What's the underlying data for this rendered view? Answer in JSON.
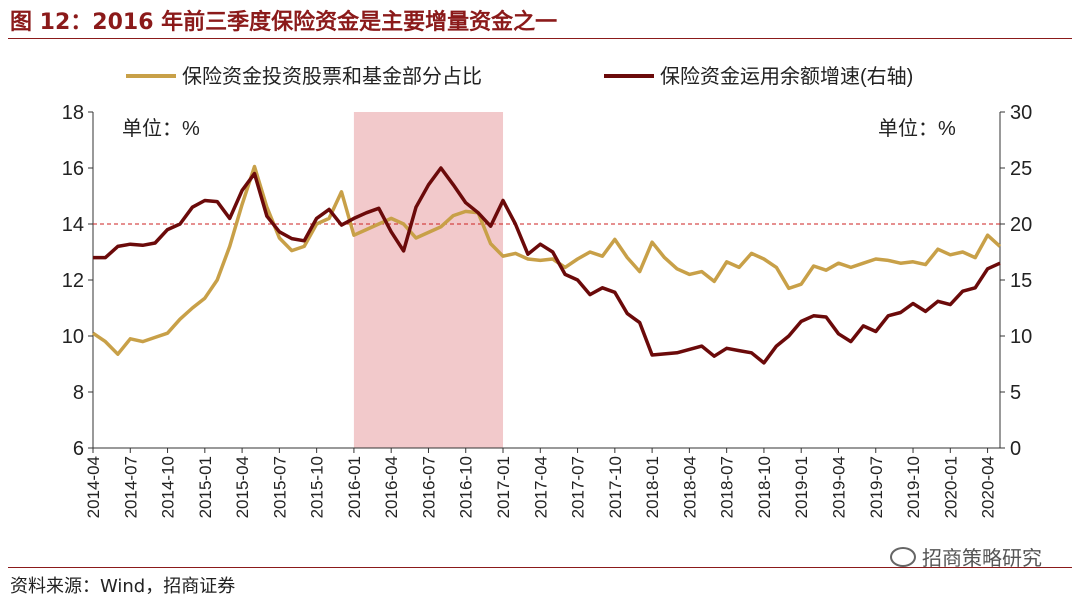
{
  "title": "图 12：2016 年前三季度保险资金是主要增量资金之一",
  "source": "资料来源：Wind，招商证券",
  "watermark": "招商策略研究",
  "chart_data": {
    "type": "line",
    "unit_left": "单位：%",
    "unit_right": "单位：%",
    "left_axis": {
      "min": 6,
      "max": 18,
      "ticks": [
        6,
        8,
        10,
        12,
        14,
        16,
        18
      ]
    },
    "right_axis": {
      "min": 0,
      "max": 30,
      "ticks": [
        0,
        5,
        10,
        15,
        20,
        25,
        30
      ]
    },
    "reference_line": {
      "axis": "right",
      "value": 20
    },
    "shaded_period": {
      "from": "2016-01",
      "to": "2017-01"
    },
    "x_tick_labels": [
      "2014-04",
      "2014-07",
      "2014-10",
      "2015-01",
      "2015-04",
      "2015-07",
      "2015-10",
      "2016-01",
      "2016-04",
      "2016-07",
      "2016-10",
      "2017-01",
      "2017-04",
      "2017-07",
      "2017-10",
      "2018-01",
      "2018-04",
      "2018-07",
      "2018-10",
      "2019-01",
      "2019-04",
      "2019-07",
      "2019-10",
      "2020-01",
      "2020-04"
    ],
    "x": [
      "2014-04",
      "2014-05",
      "2014-06",
      "2014-07",
      "2014-08",
      "2014-09",
      "2014-10",
      "2014-11",
      "2014-12",
      "2015-01",
      "2015-02",
      "2015-03",
      "2015-04",
      "2015-05",
      "2015-06",
      "2015-07",
      "2015-08",
      "2015-09",
      "2015-10",
      "2015-11",
      "2015-12",
      "2016-01",
      "2016-02",
      "2016-03",
      "2016-04",
      "2016-05",
      "2016-06",
      "2016-07",
      "2016-08",
      "2016-09",
      "2016-10",
      "2016-11",
      "2016-12",
      "2017-01",
      "2017-02",
      "2017-03",
      "2017-04",
      "2017-05",
      "2017-06",
      "2017-07",
      "2017-08",
      "2017-09",
      "2017-10",
      "2017-11",
      "2017-12",
      "2018-01",
      "2018-02",
      "2018-03",
      "2018-04",
      "2018-05",
      "2018-06",
      "2018-07",
      "2018-08",
      "2018-09",
      "2018-10",
      "2018-11",
      "2018-12",
      "2019-01",
      "2019-02",
      "2019-03",
      "2019-04",
      "2019-05",
      "2019-06",
      "2019-07",
      "2019-08",
      "2019-09",
      "2019-10",
      "2019-11",
      "2019-12",
      "2020-01",
      "2020-02",
      "2020-03",
      "2020-04",
      "2020-05"
    ],
    "series": [
      {
        "name": "保险资金投资股票和基金部分占比",
        "axis": "left",
        "color": "#c8a048",
        "values": [
          10.1,
          9.8,
          9.35,
          9.9,
          9.8,
          9.95,
          10.1,
          10.6,
          11.0,
          11.35,
          12.0,
          13.2,
          14.7,
          16.05,
          14.6,
          13.5,
          13.05,
          13.2,
          14.0,
          14.2,
          15.15,
          13.6,
          13.8,
          14.0,
          14.2,
          14.0,
          13.5,
          13.7,
          13.9,
          14.3,
          14.45,
          14.4,
          13.3,
          12.85,
          12.95,
          12.75,
          12.7,
          12.75,
          12.45,
          12.75,
          13.0,
          12.85,
          13.45,
          12.8,
          12.3,
          13.35,
          12.8,
          12.4,
          12.2,
          12.3,
          11.95,
          12.65,
          12.45,
          12.95,
          12.75,
          12.45,
          11.7,
          11.85,
          12.5,
          12.35,
          12.6,
          12.45,
          12.6,
          12.75,
          12.7,
          12.6,
          12.65,
          12.55,
          13.1,
          12.9,
          13.0,
          12.8,
          13.6,
          13.2
        ]
      },
      {
        "name": "保险资金运用余额增速(右轴)",
        "axis": "right",
        "color": "#6b0a0a",
        "values": [
          17.0,
          17.0,
          18.0,
          18.2,
          18.1,
          18.3,
          19.5,
          20.0,
          21.5,
          22.1,
          22.0,
          20.5,
          23.0,
          24.5,
          20.7,
          19.3,
          18.7,
          18.5,
          20.5,
          21.3,
          19.9,
          20.5,
          21.0,
          21.4,
          19.3,
          17.6,
          21.5,
          23.5,
          25.0,
          23.5,
          21.9,
          21.0,
          19.8,
          22.1,
          20.0,
          17.3,
          18.2,
          17.5,
          15.5,
          15.0,
          13.7,
          14.3,
          13.9,
          12.0,
          11.2,
          8.3,
          8.4,
          8.5,
          8.8,
          9.1,
          8.2,
          8.9,
          8.7,
          8.5,
          7.6,
          9.1,
          10.0,
          11.3,
          11.8,
          11.7,
          10.2,
          9.5,
          10.9,
          10.4,
          11.8,
          12.1,
          12.9,
          12.2,
          13.1,
          12.8,
          14.0,
          14.3,
          16.0,
          16.5
        ]
      }
    ]
  }
}
